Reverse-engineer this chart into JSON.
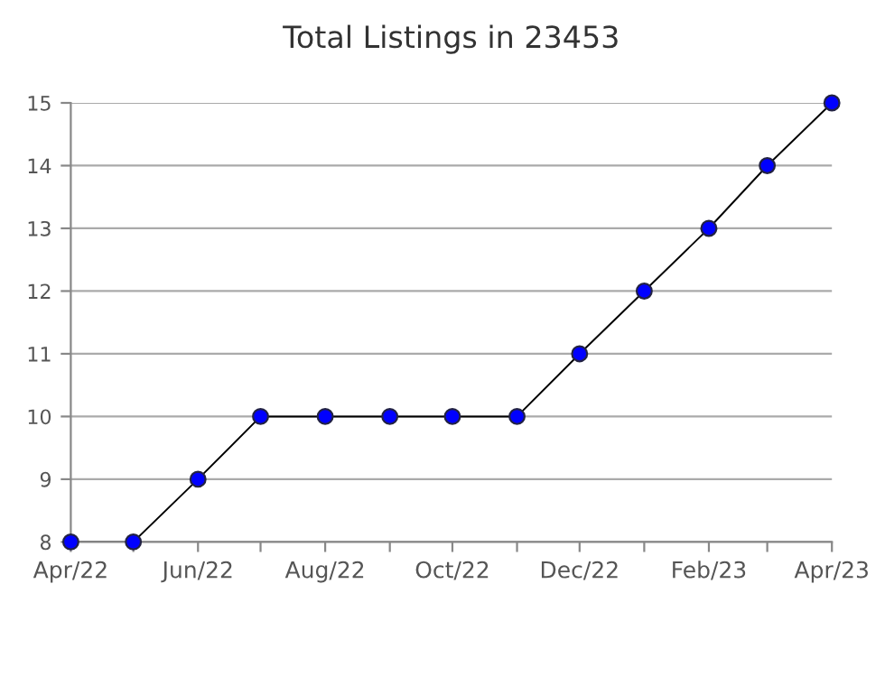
{
  "chart_data": {
    "type": "line",
    "title": "Total Listings in 23453",
    "x": [
      "2022-04",
      "2022-05",
      "2022-06",
      "2022-07",
      "2022-08",
      "2022-09",
      "2022-10",
      "2022-11",
      "2022-12",
      "2023-01",
      "2023-02",
      "2023-03",
      "2023-04"
    ],
    "series": [
      {
        "color": "#0000ff",
        "values": [
          8,
          8,
          9,
          10,
          10,
          10,
          10,
          10,
          11,
          12,
          13,
          14,
          15
        ]
      }
    ],
    "xlim": [
      "2022-04",
      "2023-04"
    ],
    "xticks": [
      {
        "value": "2022-04",
        "label": "Apr/22"
      },
      {
        "value": "2022-05",
        "label": null
      },
      {
        "value": "2022-06",
        "label": "Jun/22"
      },
      {
        "value": "2022-07",
        "label": null
      },
      {
        "value": "2022-08",
        "label": "Aug/22"
      },
      {
        "value": "2022-09",
        "label": null
      },
      {
        "value": "2022-10",
        "label": "Oct/22"
      },
      {
        "value": "2022-11",
        "label": null
      },
      {
        "value": "2022-12",
        "label": "Dec/22"
      },
      {
        "value": "2023-01",
        "label": null
      },
      {
        "value": "2023-02",
        "label": "Feb/23"
      },
      {
        "value": "2023-03",
        "label": null
      },
      {
        "value": "2023-04",
        "label": "Apr/23"
      }
    ],
    "ylim": [
      8,
      15
    ],
    "yticks": [
      8,
      9,
      10,
      11,
      12,
      13,
      14,
      15
    ],
    "grid": "y",
    "marker": "circle",
    "line_style": "solid"
  }
}
